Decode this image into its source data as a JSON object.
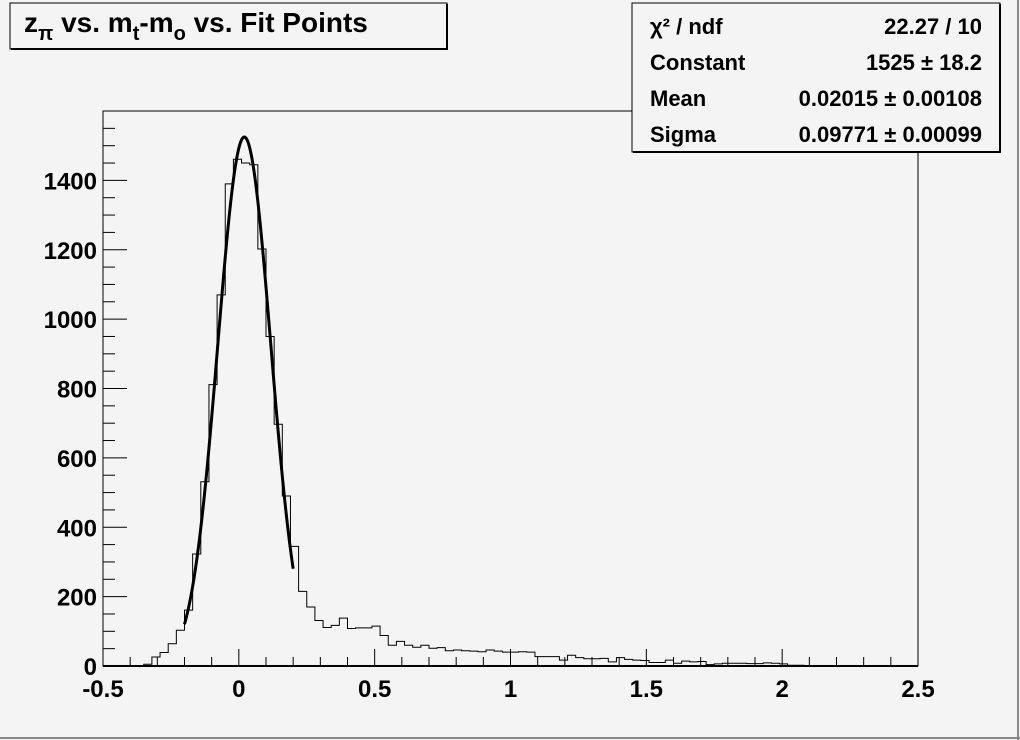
{
  "chart_data": {
    "type": "bar",
    "histogram": true,
    "title_parts": [
      {
        "text": "z",
        "style": "normal"
      },
      {
        "text": "π",
        "style": "sub"
      },
      {
        "text": " vs. m",
        "style": "normal"
      },
      {
        "text": "t",
        "style": "sub"
      },
      {
        "text": "-m",
        "style": "normal"
      },
      {
        "text": "o",
        "style": "sub"
      },
      {
        "text": " vs. Fit Points",
        "style": "normal"
      }
    ],
    "xlabel": "",
    "ylabel": "",
    "xlim": [
      -0.5,
      2.5
    ],
    "ylim": [
      0,
      1600
    ],
    "bin_width": 0.03,
    "x_ticks": [
      "-0.5",
      "0",
      "0.5",
      "1",
      "1.5",
      "2",
      "2.5"
    ],
    "y_ticks": [
      "0",
      "200",
      "400",
      "600",
      "800",
      "1000",
      "1200",
      "1400"
    ],
    "grid": false,
    "values": [
      0,
      0,
      0,
      0,
      0,
      5,
      26,
      39,
      64,
      103,
      161,
      323,
      531,
      811,
      1070,
      1390,
      1461,
      1450,
      1445,
      1202,
      950,
      697,
      490,
      345,
      215,
      170,
      131,
      111,
      117,
      138,
      108,
      110,
      110,
      115,
      88,
      60,
      71,
      60,
      54,
      60,
      51,
      53,
      44,
      46,
      44,
      43,
      41,
      46,
      43,
      40,
      40,
      41,
      40,
      27,
      27,
      27,
      17,
      31,
      24,
      21,
      21,
      22,
      12,
      24,
      19,
      17,
      16,
      10,
      10,
      17,
      8,
      14,
      12,
      13,
      4,
      6,
      8,
      8,
      8,
      7,
      7,
      9,
      8,
      6,
      2,
      2,
      1,
      1,
      0,
      1,
      0,
      0,
      0,
      0,
      0,
      0,
      0,
      0,
      0,
      0
    ],
    "fit": {
      "function": "gaus",
      "constant": 1525,
      "mean": 0.02015,
      "sigma": 0.09771,
      "range": [
        -0.2,
        0.2
      ]
    },
    "stats_box": {
      "placement": "top-right",
      "rows": [
        {
          "label": "χ² / ndf",
          "value": "22.27 / 10"
        },
        {
          "label": "Constant",
          "value": "1525 ± 18.2"
        },
        {
          "label": "Mean",
          "value": "0.02015 ± 0.00108"
        },
        {
          "label": "Sigma",
          "value": "0.09771 ± 0.00099"
        }
      ]
    },
    "colors": {
      "background": "#f4f4f4",
      "line": "#000000"
    }
  }
}
